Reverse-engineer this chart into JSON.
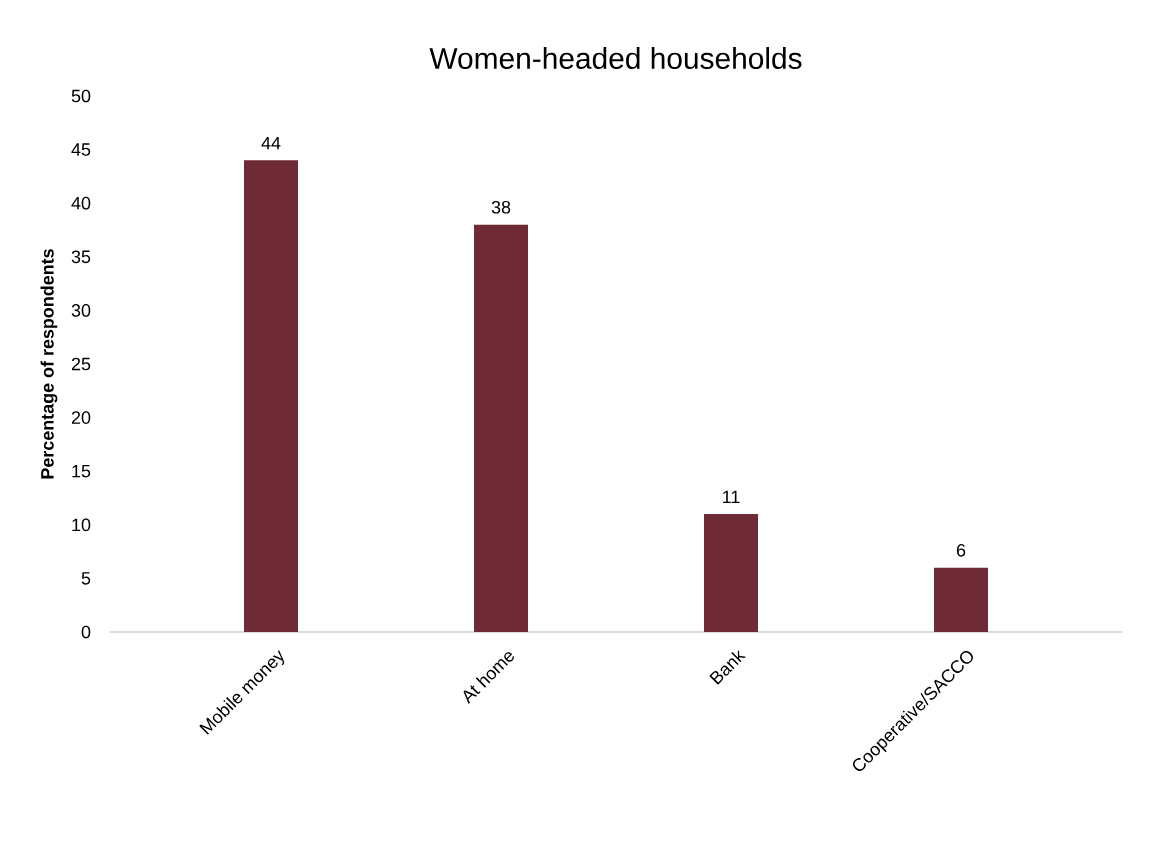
{
  "chart_data": {
    "type": "bar",
    "title": "Women-headed households",
    "ylabel": "Percentage of respondents",
    "categories": [
      "Mobile money",
      "At home",
      "Bank",
      "Cooperative/SACCO"
    ],
    "values": [
      44,
      38,
      11,
      6
    ],
    "color": "#6e2a35",
    "ylim": [
      0,
      50
    ],
    "yticks": [
      0,
      5,
      10,
      15,
      20,
      25,
      30,
      35,
      40,
      45,
      50
    ],
    "data_labels": true
  }
}
